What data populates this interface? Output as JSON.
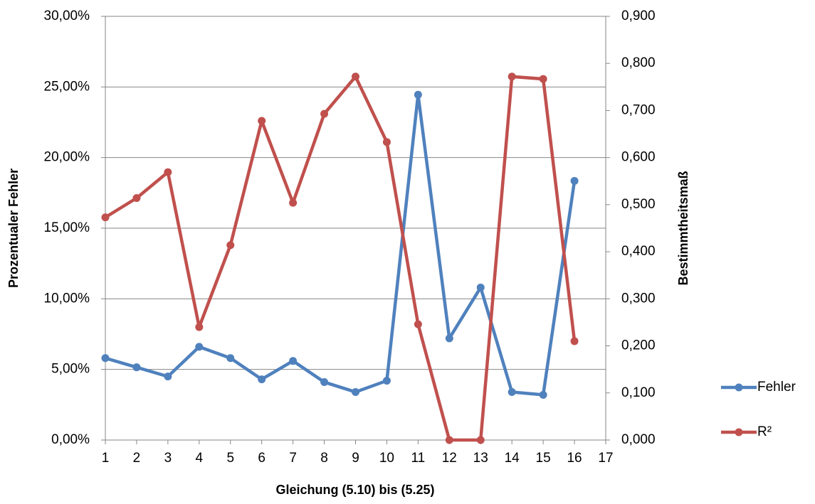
{
  "chart_data": {
    "type": "line",
    "x_label": "Gleichung (5.10) bis (5.25)",
    "y_label": "Prozentualer Fehler",
    "y2_label": "Bestimmtheitsmaß",
    "x": [
      1,
      2,
      3,
      4,
      5,
      6,
      7,
      8,
      9,
      10,
      11,
      12,
      13,
      14,
      15,
      16
    ],
    "series": [
      {
        "name": "Fehler",
        "color": "#4f81bd",
        "axis": "y",
        "values": [
          5.8,
          5.15,
          4.5,
          6.6,
          5.8,
          4.3,
          5.6,
          4.1,
          3.4,
          4.2,
          24.45,
          7.2,
          10.8,
          3.4,
          3.2,
          18.35
        ]
      },
      {
        "name": "R²",
        "color": "#c0504d",
        "axis": "y2",
        "values": [
          0.473,
          0.514,
          0.569,
          0.24,
          0.414,
          0.678,
          0.504,
          0.693,
          0.772,
          0.633,
          0.246,
          0.0,
          0.0,
          0.772,
          0.767,
          0.21
        ]
      }
    ],
    "xlim": [
      1,
      17
    ],
    "xticks": [
      1,
      2,
      3,
      4,
      5,
      6,
      7,
      8,
      9,
      10,
      11,
      12,
      13,
      14,
      15,
      16,
      17
    ],
    "ylim": [
      0,
      30
    ],
    "yticks": [
      {
        "value": 0,
        "label": "0,00%"
      },
      {
        "value": 5,
        "label": "5,00%"
      },
      {
        "value": 10,
        "label": "10,00%"
      },
      {
        "value": 15,
        "label": "15,00%"
      },
      {
        "value": 20,
        "label": "20,00%"
      },
      {
        "value": 25,
        "label": "25,00%"
      },
      {
        "value": 30,
        "label": "30,00%"
      }
    ],
    "y2lim": [
      0,
      0.9
    ],
    "y2ticks": [
      {
        "value": 0,
        "label": "0,000"
      },
      {
        "value": 0.1,
        "label": "0,100"
      },
      {
        "value": 0.2,
        "label": "0,200"
      },
      {
        "value": 0.3,
        "label": "0,300"
      },
      {
        "value": 0.4,
        "label": "0,400"
      },
      {
        "value": 0.5,
        "label": "0,500"
      },
      {
        "value": 0.6,
        "label": "0,600"
      },
      {
        "value": 0.7,
        "label": "0,700"
      },
      {
        "value": 0.8,
        "label": "0,800"
      },
      {
        "value": 0.9,
        "label": "0,900"
      }
    ],
    "grid": true,
    "legend": "right"
  }
}
